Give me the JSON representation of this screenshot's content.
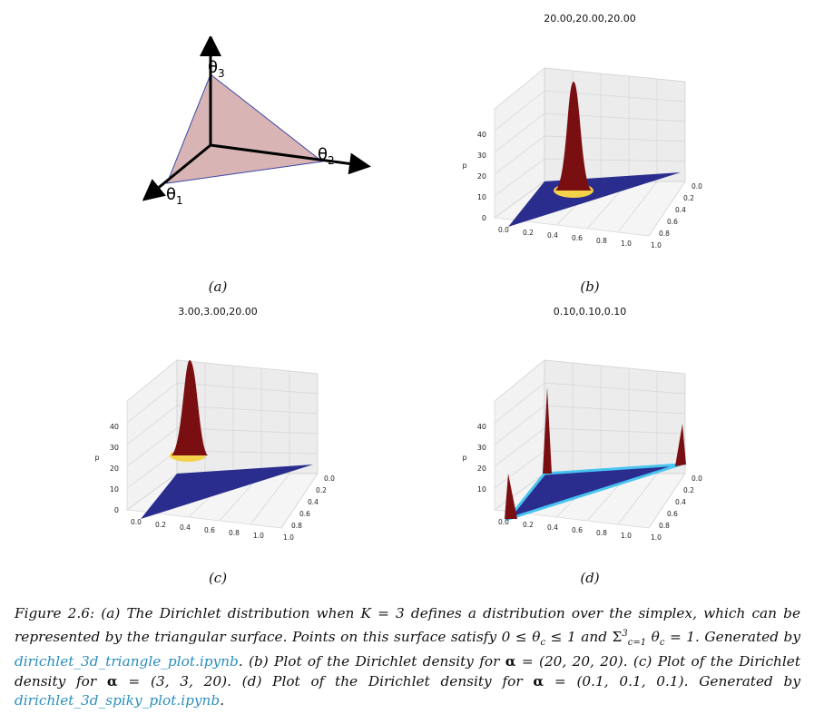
{
  "panels": {
    "a": {
      "label": "(a)",
      "axes": {
        "theta1": "θ",
        "theta1_sub": "1",
        "theta2": "θ",
        "theta2_sub": "2",
        "theta3": "θ",
        "theta3_sub": "3"
      },
      "fill_color": "#d8b4b4",
      "edge_color": "#3d46a8"
    },
    "b": {
      "label": "(b)",
      "title": "20.00,20.00,20.00",
      "zlabel": "p",
      "zticks": [
        "0",
        "10",
        "20",
        "30",
        "40"
      ],
      "xticks": [
        "0.0",
        "0.2",
        "0.4",
        "0.6",
        "0.8",
        "1.0"
      ],
      "yticks": [
        "0.0",
        "0.2",
        "0.4",
        "0.6",
        "0.8",
        "1.0"
      ]
    },
    "c": {
      "label": "(c)",
      "title": "3.00,3.00,20.00",
      "zlabel": "p",
      "zticks": [
        "0",
        "10",
        "20",
        "30",
        "40"
      ],
      "xticks": [
        "0.0",
        "0.2",
        "0.4",
        "0.6",
        "0.8",
        "1.0"
      ],
      "yticks": [
        "0.0",
        "0.2",
        "0.4",
        "0.6",
        "0.8",
        "1.0"
      ]
    },
    "d": {
      "label": "(d)",
      "title": "0.10,0.10,0.10",
      "zlabel": "p",
      "zticks": [
        "10",
        "20",
        "30",
        "40"
      ],
      "xticks": [
        "0.0",
        "0.2",
        "0.4",
        "0.6",
        "0.8",
        "1.0"
      ],
      "yticks": [
        "0.0",
        "0.2",
        "0.4",
        "0.6",
        "0.8",
        "1.0"
      ]
    }
  },
  "colors": {
    "surface_low": "#2b2d8e",
    "surface_high": "#7a0f12",
    "link": "#2a8fbd"
  },
  "caption": {
    "p1": "Figure 2.6: (a) The Dirichlet distribution when ",
    "p1_math": "K = 3",
    "p2": " defines a distribution over the simplex, which can be represented by the triangular surface. Points on this surface satisfy ",
    "p2_math": "0 ≤ θ",
    "p2_math_sub": "c",
    "p2_math_b": " ≤ 1",
    "p3": " and ",
    "p3_math": "Σ",
    "p3_sup": "3",
    "p3_sub": "c=1",
    "p3_math_b": " θ",
    "p3_math_sub": "c",
    "p3_math_c": " = 1",
    "p4": ". Generated by ",
    "link1": "dirichlet_3d_triangle_plot.ipynb",
    "p5": ". (b) Plot of the Dirichlet density for ",
    "alpha": "α",
    "p5_val": " = (20, 20, 20)",
    "p6": ". (c) Plot of the Dirichlet density for ",
    "p6_val": " = (3, 3, 20)",
    "p7": ". (d) Plot of the Dirichlet density for ",
    "p7_val": " = (0.1, 0.1, 0.1)",
    "p8": ". Generated by ",
    "link2": "dirichlet_3d_spiky_plot.ipynb",
    "p9": "."
  }
}
